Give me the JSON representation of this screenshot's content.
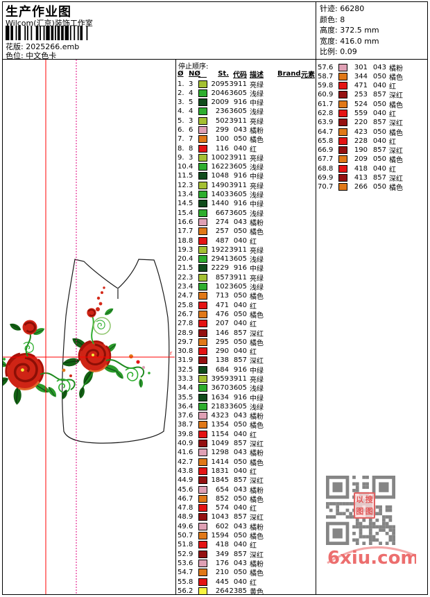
{
  "header": {
    "title": "生产作业图",
    "subtitle": "Wilcom(汇京)装饰工作室",
    "pattern_label": "花版:",
    "pattern_value": "2025266.emb",
    "colorway_label": "色位:",
    "colorway_value": "中文色卡",
    "info": [
      {
        "label": "针迹:",
        "value": "66280"
      },
      {
        "label": "颜色:",
        "value": "8"
      },
      {
        "label": "高度:",
        "value": "372.5 mm"
      },
      {
        "label": "宽度:",
        "value": "416.0 mm"
      },
      {
        "label": "比例:",
        "value": "0.09"
      }
    ]
  },
  "table": {
    "title": "停止顺序:",
    "columns": [
      "Ø",
      "NØ",
      "St.",
      "代码",
      "描述",
      "Brand",
      "元素"
    ],
    "color_map": {
      "3911": "#a4c032",
      "3605": "#2eae2e",
      "916": "#114c1c",
      "043": "#dfa0b4",
      "050": "#e07818",
      "040": "#e41414",
      "857": "#941111",
      "2385": "#f8f440"
    },
    "rows": [
      [
        1,
        3,
        2095,
        "3911",
        "亮绿"
      ],
      [
        2,
        4,
        2046,
        "3605",
        "浅绿"
      ],
      [
        3,
        5,
        2009,
        "916",
        "中绿"
      ],
      [
        4,
        4,
        236,
        "3605",
        "浅绿"
      ],
      [
        5,
        3,
        502,
        "3911",
        "亮绿"
      ],
      [
        6,
        6,
        299,
        "043",
        "橘粉"
      ],
      [
        7,
        7,
        100,
        "050",
        "橘色"
      ],
      [
        8,
        8,
        116,
        "040",
        "红"
      ],
      [
        9,
        3,
        1002,
        "3911",
        "亮绿"
      ],
      [
        10,
        4,
        1622,
        "3605",
        "浅绿"
      ],
      [
        11,
        5,
        1048,
        "916",
        "中绿"
      ],
      [
        12,
        3,
        1490,
        "3911",
        "亮绿"
      ],
      [
        13,
        4,
        1403,
        "3605",
        "浅绿"
      ],
      [
        14,
        5,
        1440,
        "916",
        "中绿"
      ],
      [
        15,
        4,
        667,
        "3605",
        "浅绿"
      ],
      [
        16,
        6,
        274,
        "043",
        "橘粉"
      ],
      [
        17,
        7,
        257,
        "050",
        "橘色"
      ],
      [
        18,
        8,
        487,
        "040",
        "红"
      ],
      [
        19,
        3,
        1922,
        "3911",
        "亮绿"
      ],
      [
        20,
        4,
        2941,
        "3605",
        "浅绿"
      ],
      [
        21,
        5,
        2229,
        "916",
        "中绿"
      ],
      [
        22,
        3,
        857,
        "3911",
        "亮绿"
      ],
      [
        23,
        4,
        102,
        "3605",
        "浅绿"
      ],
      [
        24,
        7,
        713,
        "050",
        "橘色"
      ],
      [
        25,
        8,
        471,
        "040",
        "红"
      ],
      [
        26,
        7,
        476,
        "050",
        "橘色"
      ],
      [
        27,
        8,
        207,
        "040",
        "红"
      ],
      [
        28,
        9,
        146,
        "857",
        "深红"
      ],
      [
        29,
        7,
        295,
        "050",
        "橘色"
      ],
      [
        30,
        8,
        290,
        "040",
        "红"
      ],
      [
        31,
        9,
        138,
        "857",
        "深红"
      ],
      [
        32,
        5,
        684,
        "916",
        "中绿"
      ],
      [
        33,
        3,
        3959,
        "3911",
        "亮绿"
      ],
      [
        34,
        4,
        3670,
        "3605",
        "浅绿"
      ],
      [
        35,
        5,
        1634,
        "916",
        "中绿"
      ],
      [
        36,
        4,
        2183,
        "3605",
        "浅绿"
      ],
      [
        37,
        6,
        4323,
        "043",
        "橘粉"
      ],
      [
        38,
        7,
        1354,
        "050",
        "橘色"
      ],
      [
        39,
        8,
        1154,
        "040",
        "红"
      ],
      [
        40,
        9,
        1049,
        "857",
        "深红"
      ],
      [
        41,
        6,
        1298,
        "043",
        "橘粉"
      ],
      [
        42,
        7,
        1414,
        "050",
        "橘色"
      ],
      [
        43,
        8,
        1831,
        "040",
        "红"
      ],
      [
        44,
        9,
        1845,
        "857",
        "深红"
      ],
      [
        45,
        6,
        654,
        "043",
        "橘粉"
      ],
      [
        46,
        7,
        852,
        "050",
        "橘色"
      ],
      [
        47,
        8,
        574,
        "040",
        "红"
      ],
      [
        48,
        9,
        1043,
        "857",
        "深红"
      ],
      [
        49,
        6,
        602,
        "043",
        "橘粉"
      ],
      [
        50,
        7,
        1594,
        "050",
        "橘色"
      ],
      [
        51,
        8,
        418,
        "040",
        "红"
      ],
      [
        52,
        9,
        349,
        "857",
        "深红"
      ],
      [
        53,
        6,
        176,
        "043",
        "橘粉"
      ],
      [
        54,
        7,
        210,
        "050",
        "橘色"
      ],
      [
        55,
        8,
        445,
        "040",
        "红"
      ],
      [
        56,
        2,
        264,
        "2385",
        "黄色"
      ],
      [
        57,
        6,
        301,
        "043",
        "橘粉"
      ],
      [
        58,
        7,
        344,
        "050",
        "橘色"
      ],
      [
        59,
        8,
        471,
        "040",
        "红"
      ],
      [
        60,
        9,
        253,
        "857",
        "深红"
      ],
      [
        61,
        7,
        524,
        "050",
        "橘色"
      ],
      [
        62,
        8,
        559,
        "040",
        "红"
      ],
      [
        63,
        9,
        220,
        "857",
        "深红"
      ],
      [
        64,
        7,
        423,
        "050",
        "橘色"
      ],
      [
        65,
        8,
        228,
        "040",
        "红"
      ],
      [
        66,
        9,
        190,
        "857",
        "深红"
      ],
      [
        67,
        7,
        209,
        "050",
        "橘色"
      ],
      [
        68,
        8,
        418,
        "040",
        "红"
      ],
      [
        69,
        9,
        413,
        "857",
        "深红"
      ],
      [
        70,
        7,
        266,
        "050",
        "橘色"
      ]
    ]
  },
  "design": {
    "guide_color_red": "#ff0000",
    "guide_color_magenta": "#e0007f",
    "origin_marker": "r"
  },
  "watermark": {
    "site": "6xiu.com",
    "stamp_chars": [
      "以",
      "搜",
      "图",
      "图"
    ],
    "stamp_text": "以图搜图",
    "site_color": "#ec6e6e"
  }
}
